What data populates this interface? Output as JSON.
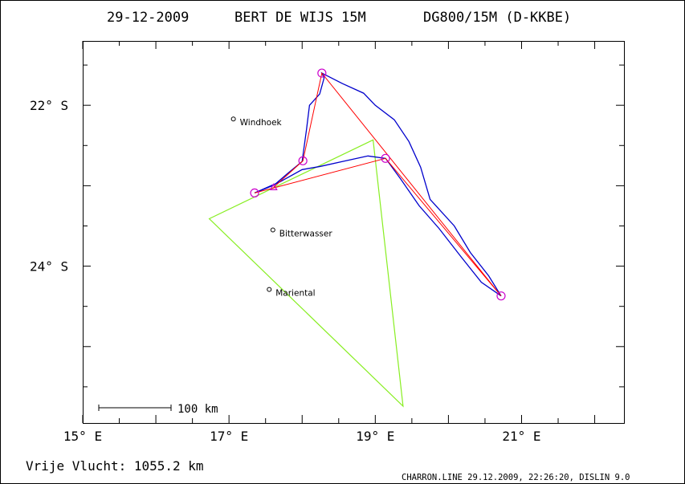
{
  "title": {
    "date": "29-12-2009",
    "pilot": "BERT DE WIJS 15M",
    "glider": "DG800/15M (D-KKBE)"
  },
  "map": {
    "x_ticks": [
      {
        "lon": 15,
        "label": "15° E"
      },
      {
        "lon": 17,
        "label": "17° E"
      },
      {
        "lon": 19,
        "label": "19° E"
      },
      {
        "lon": 21,
        "label": "21° E"
      }
    ],
    "y_ticks": [
      {
        "lat": -22,
        "label": "22° S"
      },
      {
        "lat": -24,
        "label": "24° S"
      }
    ],
    "lon_range": [
      15,
      22.4
    ],
    "lat_range": [
      -25.95,
      -21.2
    ],
    "towns": [
      {
        "name": "Windhoek",
        "lon": 17.06,
        "lat": -22.17
      },
      {
        "name": "Bitterwasser",
        "lon": 17.6,
        "lat": -23.55
      },
      {
        "name": "Mariental",
        "lon": 17.55,
        "lat": -24.29
      }
    ],
    "scale_bar": {
      "label": "100 km"
    },
    "colors": {
      "track": "#0000cc",
      "task": "#ff0000",
      "triangle": "#88ee22",
      "turnpoint": "#cc00cc"
    },
    "turnpoints": [
      {
        "lon": 17.35,
        "lat": -23.09
      },
      {
        "lon": 18.01,
        "lat": -22.69
      },
      {
        "lon": 18.27,
        "lat": -21.6
      },
      {
        "lon": 19.14,
        "lat": -22.66
      },
      {
        "lon": 20.72,
        "lat": -24.37
      }
    ],
    "start_lon": 17.61,
    "start_lat": -23.02,
    "task_route": [
      {
        "lon": 17.61,
        "lat": -23.02
      },
      {
        "lon": 18.01,
        "lat": -22.69
      },
      {
        "lon": 18.27,
        "lat": -21.6
      },
      {
        "lon": 20.72,
        "lat": -24.37
      },
      {
        "lon": 19.14,
        "lat": -22.66
      },
      {
        "lon": 17.35,
        "lat": -23.09
      }
    ],
    "triangle": [
      {
        "lon": 16.73,
        "lat": -23.41
      },
      {
        "lon": 18.97,
        "lat": -22.43
      },
      {
        "lon": 19.38,
        "lat": -25.74
      }
    ],
    "track": [
      {
        "lon": 17.35,
        "lat": -23.09
      },
      {
        "lon": 17.62,
        "lat": -22.99
      },
      {
        "lon": 17.8,
        "lat": -22.85
      },
      {
        "lon": 18.0,
        "lat": -22.7
      },
      {
        "lon": 18.06,
        "lat": -22.3
      },
      {
        "lon": 18.1,
        "lat": -22.0
      },
      {
        "lon": 18.24,
        "lat": -21.86
      },
      {
        "lon": 18.3,
        "lat": -21.66
      },
      {
        "lon": 18.27,
        "lat": -21.6
      },
      {
        "lon": 18.55,
        "lat": -21.73
      },
      {
        "lon": 18.84,
        "lat": -21.85
      },
      {
        "lon": 19.0,
        "lat": -22.0
      },
      {
        "lon": 19.26,
        "lat": -22.18
      },
      {
        "lon": 19.46,
        "lat": -22.45
      },
      {
        "lon": 19.62,
        "lat": -22.77
      },
      {
        "lon": 19.75,
        "lat": -23.17
      },
      {
        "lon": 20.08,
        "lat": -23.5
      },
      {
        "lon": 20.3,
        "lat": -23.83
      },
      {
        "lon": 20.55,
        "lat": -24.12
      },
      {
        "lon": 20.72,
        "lat": -24.37
      },
      {
        "lon": 20.45,
        "lat": -24.2
      },
      {
        "lon": 20.17,
        "lat": -23.88
      },
      {
        "lon": 19.87,
        "lat": -23.53
      },
      {
        "lon": 19.6,
        "lat": -23.25
      },
      {
        "lon": 19.35,
        "lat": -22.92
      },
      {
        "lon": 19.14,
        "lat": -22.66
      },
      {
        "lon": 18.9,
        "lat": -22.63
      },
      {
        "lon": 18.55,
        "lat": -22.7
      },
      {
        "lon": 18.25,
        "lat": -22.76
      },
      {
        "lon": 18.0,
        "lat": -22.8
      },
      {
        "lon": 17.7,
        "lat": -22.95
      },
      {
        "lon": 17.35,
        "lat": -23.09
      }
    ]
  },
  "footer": {
    "distance": "Vrije Vlucht: 1055.2 km",
    "credit": "CHARRON.LINE 29.12.2009, 22:26:20, DISLIN 9.0"
  }
}
